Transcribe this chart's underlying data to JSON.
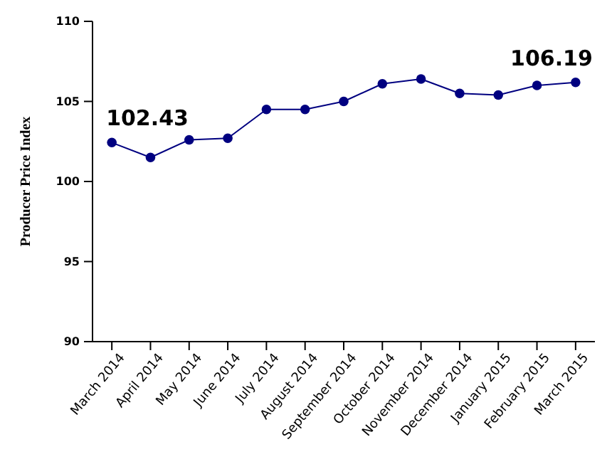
{
  "chart_data": {
    "type": "line",
    "ylabel": "Producer Price Index",
    "categories": [
      "March 2014",
      "April 2014",
      "May 2014",
      "June 2014",
      "July 2014",
      "August 2014",
      "September 2014",
      "October 2014",
      "November 2014",
      "December 2014",
      "January 2015",
      "February 2015",
      "March 2015"
    ],
    "series": [
      {
        "color": "#000080",
        "values": [
          102.43,
          101.5,
          102.6,
          102.7,
          104.5,
          104.5,
          105.0,
          106.1,
          106.4,
          105.5,
          105.4,
          106.0,
          106.19
        ]
      }
    ],
    "ylim": [
      90,
      110
    ],
    "yticks": [
      90,
      95,
      100,
      105,
      110
    ],
    "grid": false,
    "marker": "circle",
    "line_style": "solid",
    "annotations": [
      {
        "text": "102.43",
        "x": "March 2014",
        "y": 102.43
      },
      {
        "text": "106.19",
        "x": "March 2015",
        "y": 106.19
      }
    ]
  }
}
